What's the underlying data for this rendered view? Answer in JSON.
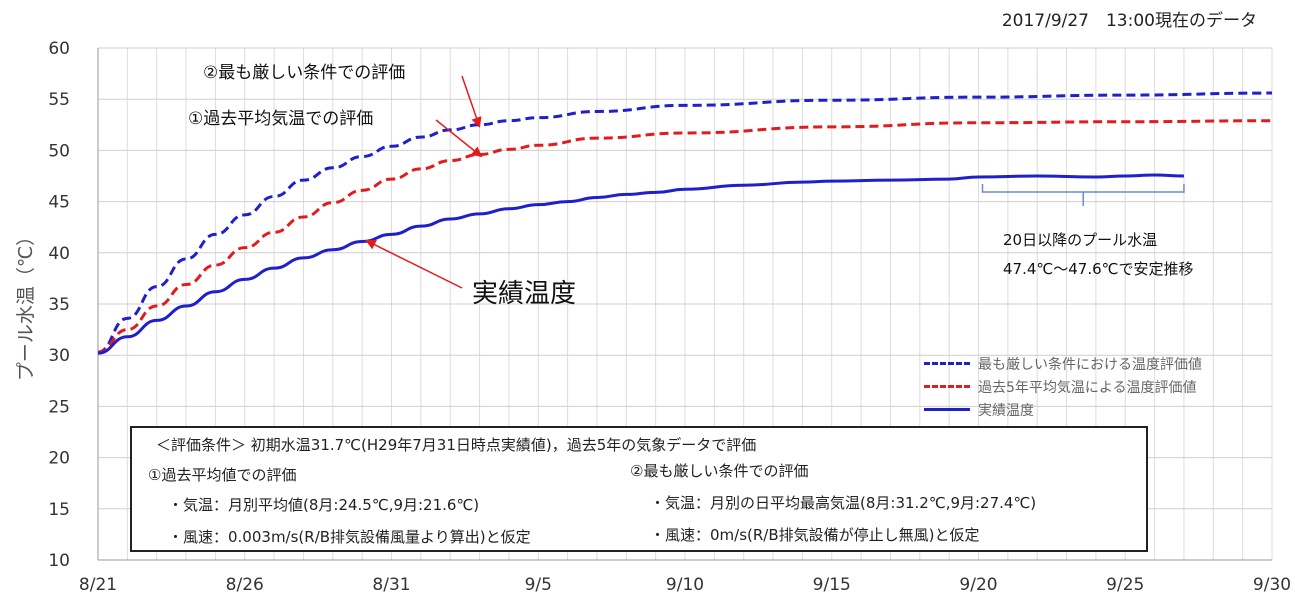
{
  "header": {
    "date_stamp": "2017/9/27　13:00現在のデータ"
  },
  "chart_data": {
    "type": "line",
    "ylabel": "プール水温（℃）",
    "ylim": [
      10,
      60
    ],
    "yticks": [
      10,
      15,
      20,
      25,
      30,
      35,
      40,
      45,
      50,
      55,
      60
    ],
    "x_tick_labels": [
      "8/21",
      "8/26",
      "8/31",
      "9/5",
      "9/10",
      "9/15",
      "9/20",
      "9/25",
      "9/30"
    ],
    "x_range_days_from_8_21": [
      0,
      40
    ],
    "grid": "vertical daily lines + horizontal at each y tick",
    "legend_placement": "right, above condition box",
    "series": [
      {
        "name": "最も厳しい条件における温度評価値",
        "color": "#1f1fcc",
        "style": "dashed",
        "points": [
          [
            "8/21",
            30.3
          ],
          [
            "8/22",
            33.6
          ],
          [
            "8/23",
            36.7
          ],
          [
            "8/24",
            39.4
          ],
          [
            "8/25",
            41.8
          ],
          [
            "8/26",
            43.7
          ],
          [
            "8/27",
            45.5
          ],
          [
            "8/28",
            47.1
          ],
          [
            "8/29",
            48.3
          ],
          [
            "8/30",
            49.4
          ],
          [
            "8/31",
            50.4
          ],
          [
            "9/1",
            51.3
          ],
          [
            "9/2",
            52.0
          ],
          [
            "9/3",
            52.5
          ],
          [
            "9/4",
            52.9
          ],
          [
            "9/5",
            53.2
          ],
          [
            "9/7",
            53.8
          ],
          [
            "9/10",
            54.4
          ],
          [
            "9/15",
            54.9
          ],
          [
            "9/20",
            55.2
          ],
          [
            "9/25",
            55.4
          ],
          [
            "9/30",
            55.6
          ]
        ]
      },
      {
        "name": "過去5年平均気温による温度評価値",
        "color": "#e21c1c",
        "style": "dashed",
        "points": [
          [
            "8/21",
            30.3
          ],
          [
            "8/22",
            32.5
          ],
          [
            "8/23",
            34.8
          ],
          [
            "8/24",
            36.9
          ],
          [
            "8/25",
            38.8
          ],
          [
            "8/26",
            40.5
          ],
          [
            "8/27",
            42.0
          ],
          [
            "8/28",
            43.5
          ],
          [
            "8/29",
            44.9
          ],
          [
            "8/30",
            46.1
          ],
          [
            "8/31",
            47.2
          ],
          [
            "9/1",
            48.2
          ],
          [
            "9/2",
            49.0
          ],
          [
            "9/3",
            49.6
          ],
          [
            "9/4",
            50.1
          ],
          [
            "9/5",
            50.5
          ],
          [
            "9/7",
            51.2
          ],
          [
            "9/10",
            51.7
          ],
          [
            "9/15",
            52.3
          ],
          [
            "9/20",
            52.7
          ],
          [
            "9/25",
            52.8
          ],
          [
            "9/30",
            52.9
          ]
        ]
      },
      {
        "name": "実績温度",
        "color": "#1f1fcc",
        "style": "solid",
        "points": [
          [
            "8/21",
            30.2
          ],
          [
            "8/22",
            31.8
          ],
          [
            "8/23",
            33.4
          ],
          [
            "8/24",
            34.8
          ],
          [
            "8/25",
            36.2
          ],
          [
            "8/26",
            37.4
          ],
          [
            "8/27",
            38.5
          ],
          [
            "8/28",
            39.5
          ],
          [
            "8/29",
            40.3
          ],
          [
            "8/30",
            41.1
          ],
          [
            "8/31",
            41.8
          ],
          [
            "9/1",
            42.6
          ],
          [
            "9/2",
            43.3
          ],
          [
            "9/3",
            43.8
          ],
          [
            "9/4",
            44.3
          ],
          [
            "9/5",
            44.7
          ],
          [
            "9/6",
            45.0
          ],
          [
            "9/7",
            45.4
          ],
          [
            "9/8",
            45.7
          ],
          [
            "9/9",
            45.9
          ],
          [
            "9/10",
            46.2
          ],
          [
            "9/12",
            46.6
          ],
          [
            "9/14",
            46.9
          ],
          [
            "9/15",
            47.0
          ],
          [
            "9/17",
            47.1
          ],
          [
            "9/19",
            47.2
          ],
          [
            "9/20",
            47.4
          ],
          [
            "9/22",
            47.5
          ],
          [
            "9/24",
            47.4
          ],
          [
            "9/25",
            47.5
          ],
          [
            "9/26",
            47.6
          ],
          [
            "9/27",
            47.5
          ]
        ]
      }
    ],
    "annotations": {
      "worst_case": "②最も厳しい条件での評価",
      "past_average": "①過去平均気温での評価",
      "actual": "実績温度",
      "stable_line1": "20日以降のプール水温",
      "stable_line2": "47.4℃～47.6℃で安定推移"
    }
  },
  "conditions": {
    "title": "＜評価条件＞ 初期水温31.7℃(H29年7月31日時点実績値)，過去5年の気象データで評価",
    "left_heading": "①過去平均値での評価",
    "left_temp": "・気温：月別平均値(8月:24.5℃,9月:21.6℃)",
    "left_wind": "・風速：0.003m/s(R/B排気設備風量より算出)と仮定",
    "right_heading": "②最も厳しい条件での評価",
    "right_temp": "・気温：月別の日平均最高気温(8月:31.2℃,9月:27.4℃)",
    "right_wind": "・風速：0m/s(R/B排気設備が停止し無風)と仮定"
  }
}
